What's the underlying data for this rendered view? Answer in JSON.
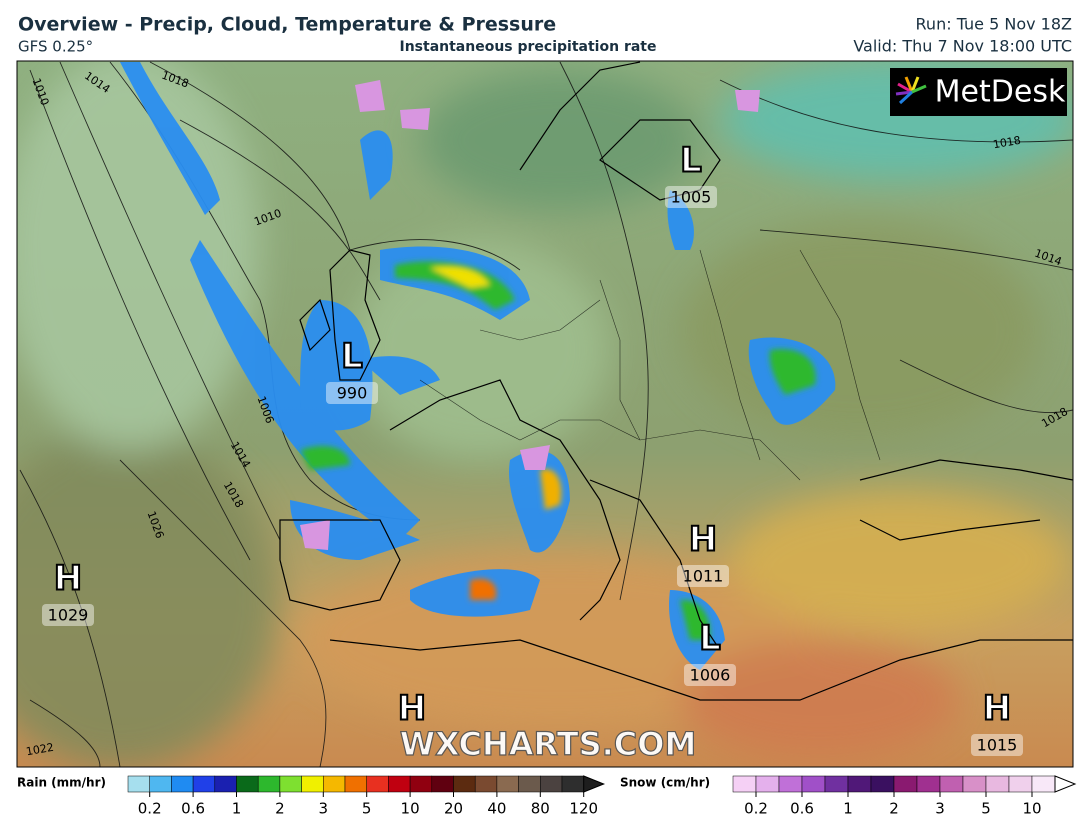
{
  "header": {
    "title": "Overview - Precip, Cloud, Temperature & Pressure",
    "model": "GFS 0.25°",
    "subtitle": "Instantaneous precipitation rate",
    "run": "Run: Tue 5 Nov 18Z",
    "valid": "Valid: Thu 7 Nov 18:00 UTC"
  },
  "map": {
    "logo": "MetDesk",
    "watermark": "WXCHARTS.COM",
    "pressure_centers": [
      {
        "symbol": "L",
        "value": 1005
      },
      {
        "symbol": "L",
        "value": 990
      },
      {
        "symbol": "H",
        "value": 1029
      },
      {
        "symbol": "H",
        "value": 1011
      },
      {
        "symbol": "L",
        "value": 1006
      },
      {
        "symbol": "H"
      },
      {
        "symbol": "H",
        "value": 1015
      }
    ],
    "isobar_labels": [
      1018,
      1014,
      1010,
      1010,
      1006,
      1014,
      1018,
      1026,
      1022,
      1018,
      1014,
      1018
    ]
  },
  "legend": {
    "rain": {
      "label": "Rain (mm/hr)",
      "ticks": [
        "0.2",
        "0.6",
        "1",
        "2",
        "3",
        "5",
        "10",
        "20",
        "40",
        "80",
        "120"
      ]
    },
    "snow": {
      "label": "Snow (cm/hr)",
      "ticks": [
        "0.2",
        "0.6",
        "1",
        "2",
        "3",
        "5",
        "10"
      ]
    }
  }
}
